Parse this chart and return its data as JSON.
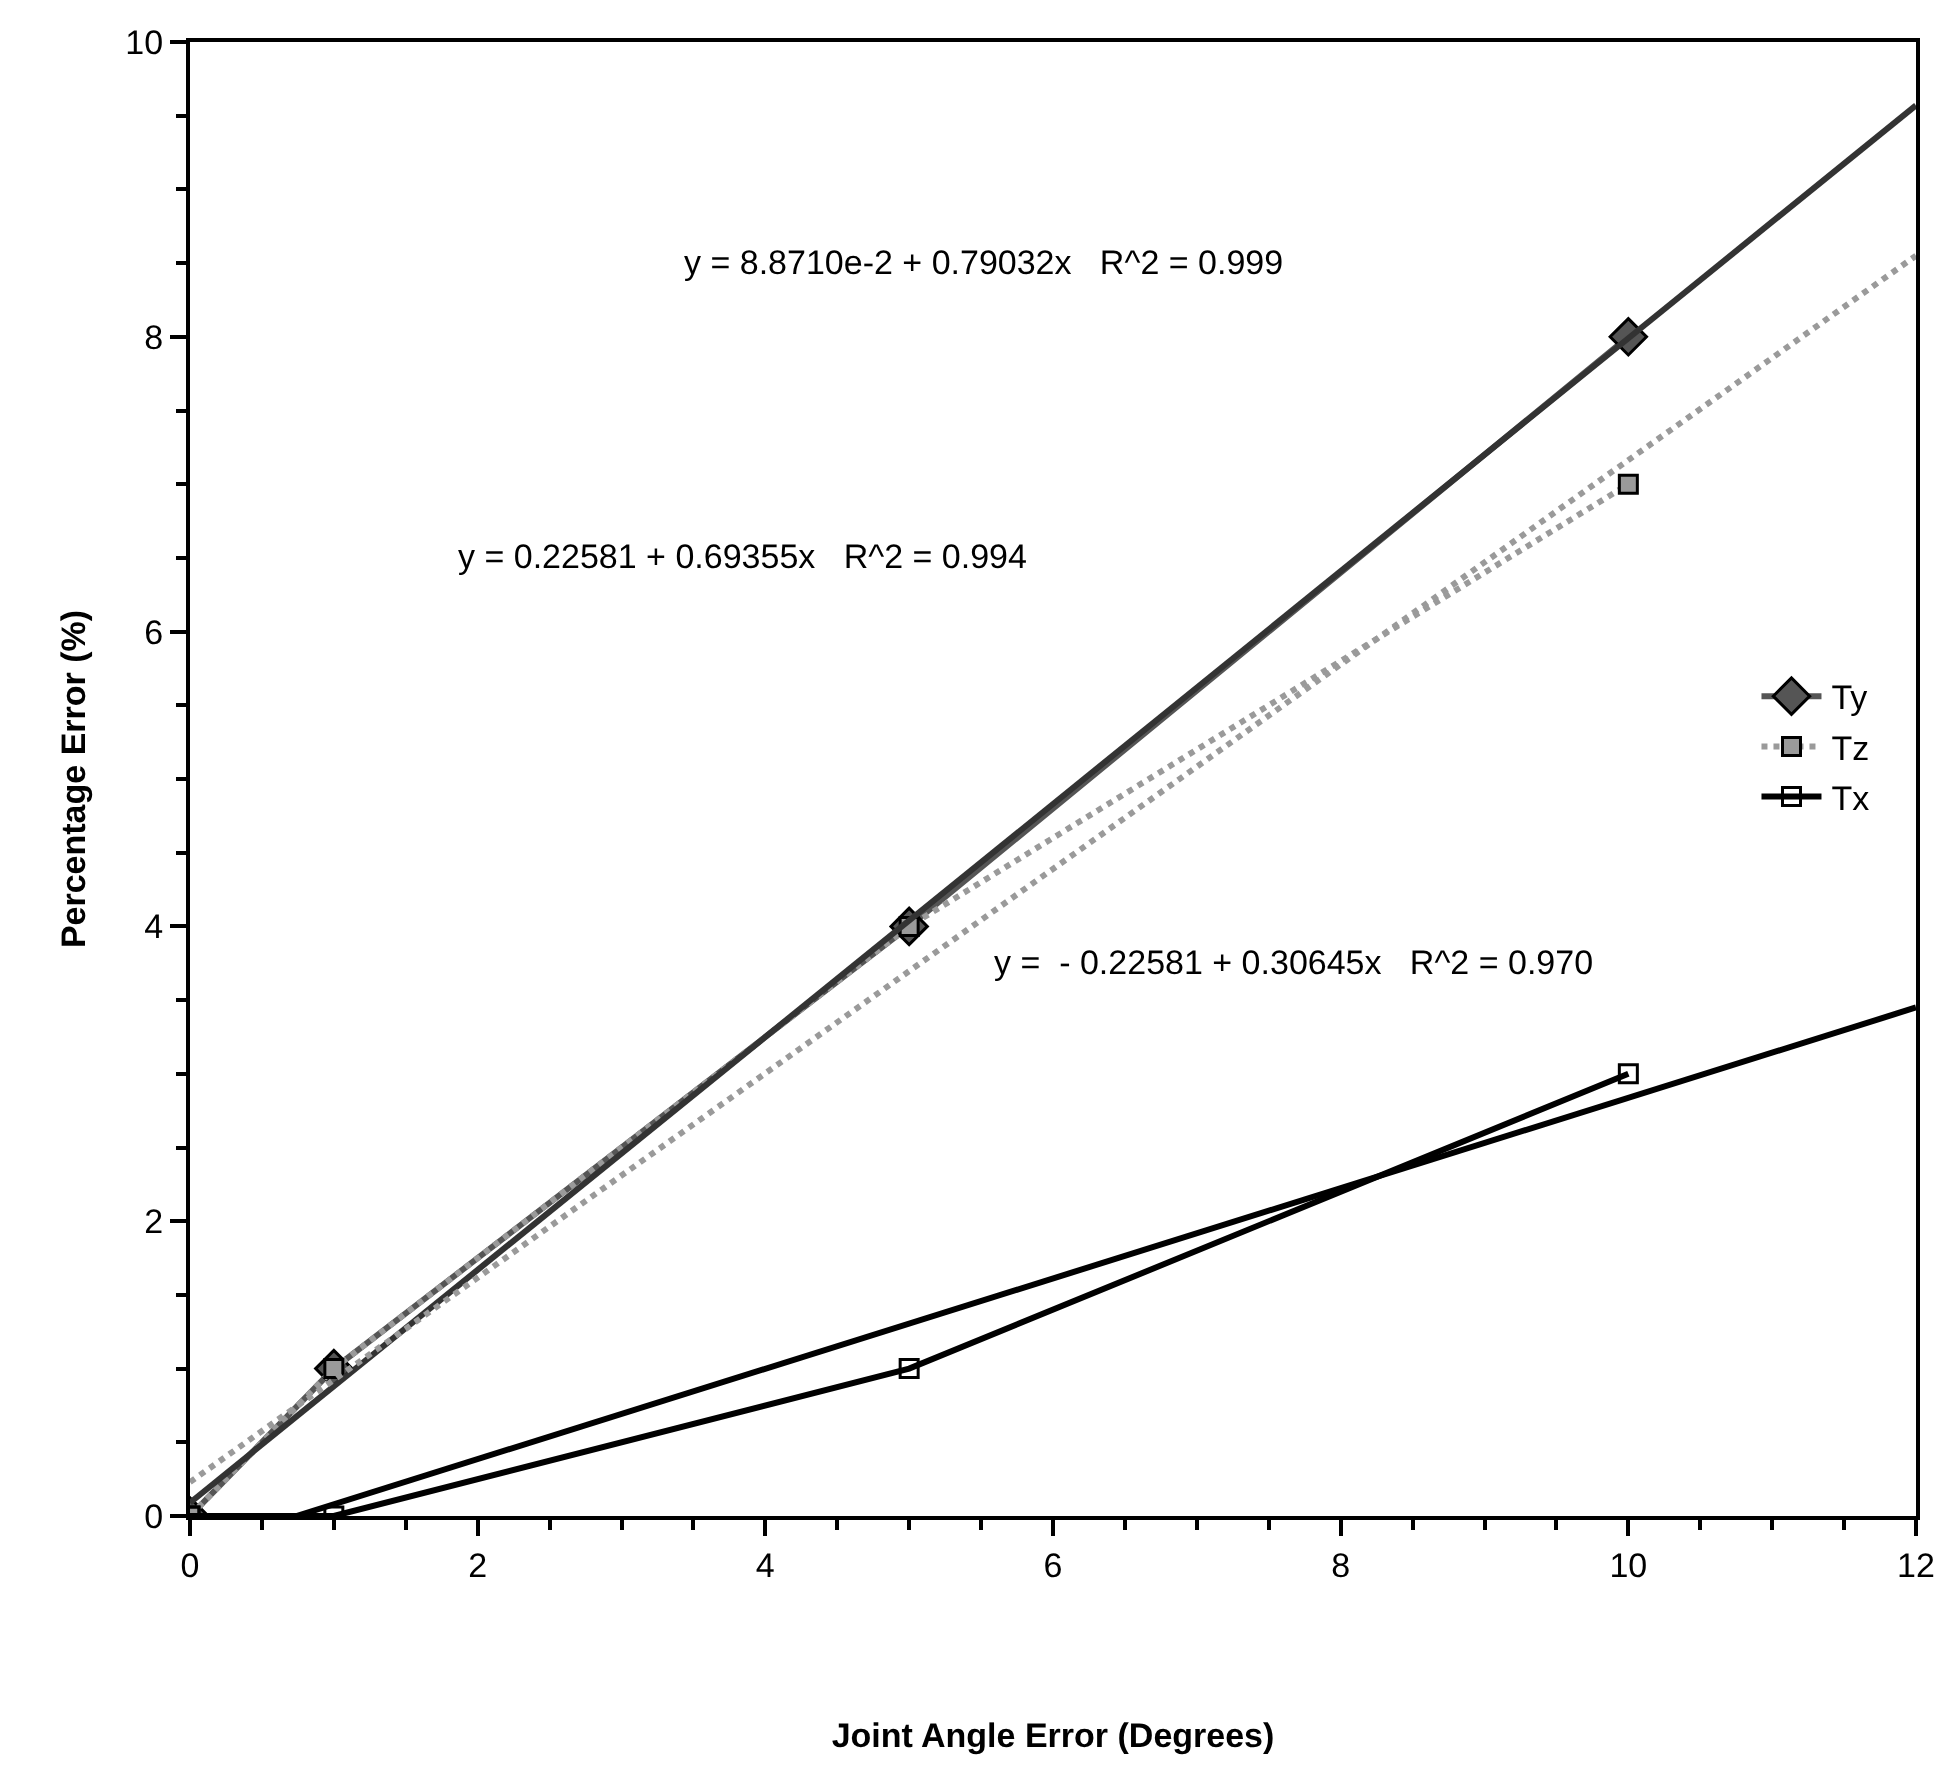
{
  "chart_data": {
    "type": "line",
    "xlabel": "Joint Angle Error (Degrees)",
    "ylabel": "Percentage Error (%)",
    "x": [
      0,
      1,
      5,
      10
    ],
    "series": [
      {
        "name": "Ty",
        "color": "#555555",
        "values": [
          0,
          1,
          4,
          8
        ],
        "marker": "diamond",
        "line_style": "solid"
      },
      {
        "name": "Tz",
        "color": "#9a9a9a",
        "values": [
          0,
          1,
          4,
          7
        ],
        "marker": "square",
        "line_style": "dotted"
      },
      {
        "name": "Tx",
        "color": "#000000",
        "values": [
          0,
          0,
          1,
          3
        ],
        "marker": "square-open",
        "line_style": "solid"
      },
      {
        "type": "line",
        "color": "#333333",
        "x": [
          0,
          12
        ],
        "values": [
          0.09,
          9.57
        ],
        "marker": "none",
        "line_style": "solid"
      },
      {
        "type": "line",
        "color": "#9a9a9a",
        "x": [
          0,
          12
        ],
        "values": [
          0.23,
          8.55
        ],
        "marker": "none",
        "line_style": "dotted"
      },
      {
        "type": "line",
        "color": "#000000",
        "x": [
          0.74,
          12
        ],
        "values": [
          0,
          3.45
        ],
        "marker": "none",
        "line_style": "solid"
      }
    ],
    "annotations": [
      "y = 8.8710e-2 + 0.79032x   R^2 = 0.999",
      "y = 0.22581 + 0.69355x   R^2 = 0.994",
      "y =  - 0.22581 + 0.30645x   R^2 = 0.970"
    ],
    "xlim": [
      0,
      12
    ],
    "xticks": [
      0,
      2,
      4,
      6,
      8,
      10,
      12
    ],
    "ylim": [
      0,
      10
    ],
    "yticks": [
      0,
      2,
      4,
      6,
      8,
      10
    ],
    "legend": "right"
  }
}
